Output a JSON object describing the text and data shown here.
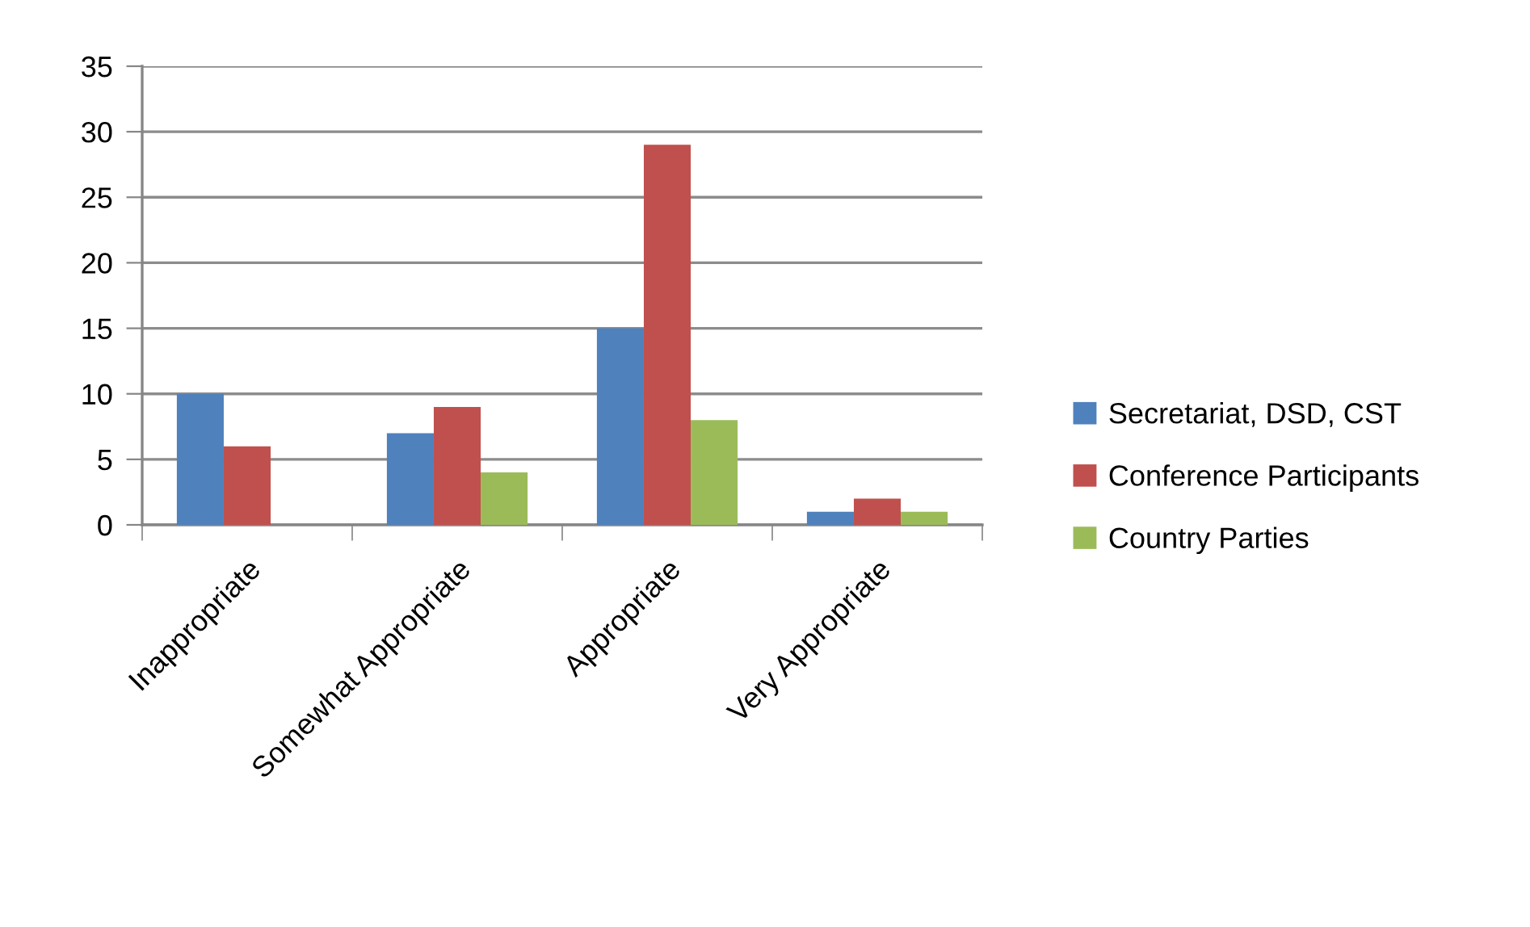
{
  "chart_data": {
    "type": "bar",
    "categories": [
      "Inappropriate",
      "Somewhat Appropriate",
      "Appropriate",
      "Very Appropriate"
    ],
    "series": [
      {
        "name": "Secretariat, DSD, CST",
        "color": "#4f81bd",
        "values": [
          10,
          7,
          15,
          1
        ]
      },
      {
        "name": "Conference Participants",
        "color": "#c0504d",
        "values": [
          6,
          9,
          29,
          2
        ]
      },
      {
        "name": "Country Parties",
        "color": "#9bbb59",
        "values": [
          null,
          4,
          8,
          1
        ]
      }
    ],
    "ylim": [
      0,
      35
    ],
    "yticks": [
      0,
      5,
      10,
      15,
      20,
      25,
      30,
      35
    ],
    "grid": "y",
    "legend": "right"
  }
}
